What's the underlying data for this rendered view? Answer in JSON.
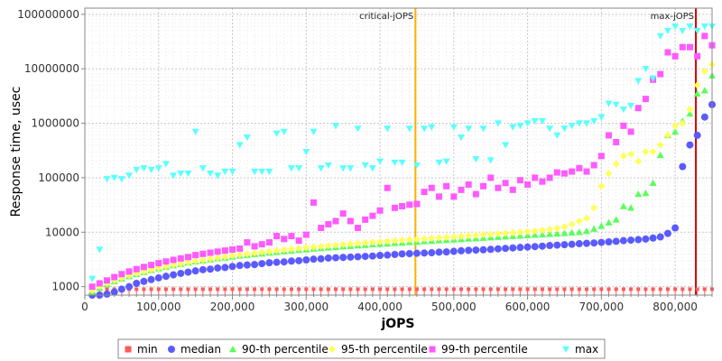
{
  "chart_data": {
    "type": "scatter",
    "xlabel": "jOPS",
    "ylabel": "Response time, usec",
    "xlim": [
      0,
      850000
    ],
    "ylim": [
      700,
      130000000
    ],
    "yscale": "log",
    "x_ticks": [
      0,
      100000,
      200000,
      300000,
      400000,
      500000,
      600000,
      700000,
      800000
    ],
    "x_tick_labels": [
      "0",
      "100,000",
      "200,000",
      "300,000",
      "400,000",
      "500,000",
      "600,000",
      "700,000",
      "800,000"
    ],
    "y_ticks": [
      1000,
      10000,
      100000,
      1000000,
      10000000,
      100000000
    ],
    "y_tick_labels": [
      "1000",
      "10000",
      "100000",
      "1000000",
      "10000000",
      "100000000"
    ],
    "grid": true,
    "legend_position": "bottom",
    "vertical_lines": [
      {
        "label": "critical-jOPS",
        "x": 448000,
        "color": "#ffb000"
      },
      {
        "label": "max-jOPS",
        "x": 828000,
        "color": "#dd0000"
      }
    ],
    "series": [
      {
        "name": "min",
        "color": "#ff5a5a",
        "marker": "square",
        "x": [
          10000,
          20000,
          30000,
          40000,
          50000,
          60000,
          70000,
          80000,
          90000,
          100000,
          110000,
          120000,
          130000,
          140000,
          150000,
          160000,
          170000,
          180000,
          190000,
          200000,
          210000,
          220000,
          230000,
          240000,
          250000,
          260000,
          270000,
          280000,
          290000,
          300000,
          310000,
          320000,
          330000,
          340000,
          350000,
          360000,
          370000,
          380000,
          390000,
          400000,
          410000,
          420000,
          430000,
          440000,
          450000,
          460000,
          470000,
          480000,
          490000,
          500000,
          510000,
          520000,
          530000,
          540000,
          550000,
          560000,
          570000,
          580000,
          590000,
          600000,
          610000,
          620000,
          630000,
          640000,
          650000,
          660000,
          670000,
          680000,
          690000,
          700000,
          710000,
          720000,
          730000,
          740000,
          750000,
          760000,
          770000,
          780000,
          790000,
          800000,
          810000,
          820000,
          830000,
          840000,
          850000
        ],
        "y": [
          900,
          900,
          900,
          900,
          900,
          900,
          900,
          900,
          900,
          900,
          900,
          900,
          900,
          900,
          900,
          900,
          900,
          900,
          900,
          900,
          900,
          900,
          900,
          900,
          900,
          900,
          900,
          900,
          900,
          900,
          900,
          900,
          900,
          900,
          900,
          900,
          900,
          900,
          900,
          900,
          900,
          900,
          900,
          900,
          900,
          900,
          900,
          900,
          900,
          900,
          900,
          900,
          900,
          900,
          900,
          900,
          900,
          900,
          900,
          900,
          900,
          900,
          900,
          900,
          900,
          900,
          900,
          900,
          900,
          900,
          900,
          900,
          900,
          900,
          900,
          900,
          900,
          900,
          900,
          900,
          900,
          900,
          900,
          900,
          900
        ]
      },
      {
        "name": "median",
        "color": "#5a5aff",
        "marker": "circle",
        "x": [
          10000,
          20000,
          30000,
          40000,
          50000,
          60000,
          70000,
          80000,
          90000,
          100000,
          110000,
          120000,
          130000,
          140000,
          150000,
          160000,
          170000,
          180000,
          190000,
          200000,
          210000,
          220000,
          230000,
          240000,
          250000,
          260000,
          270000,
          280000,
          290000,
          300000,
          310000,
          320000,
          330000,
          340000,
          350000,
          360000,
          370000,
          380000,
          390000,
          400000,
          410000,
          420000,
          430000,
          440000,
          450000,
          460000,
          470000,
          480000,
          490000,
          500000,
          510000,
          520000,
          530000,
          540000,
          550000,
          560000,
          570000,
          580000,
          590000,
          600000,
          610000,
          620000,
          630000,
          640000,
          650000,
          660000,
          670000,
          680000,
          690000,
          700000,
          710000,
          720000,
          730000,
          740000,
          750000,
          760000,
          770000,
          780000,
          790000,
          800000,
          810000,
          820000,
          830000,
          840000,
          850000
        ],
        "y": [
          650,
          700,
          730,
          800,
          900,
          1000,
          1150,
          1250,
          1350,
          1450,
          1550,
          1650,
          1750,
          1850,
          1950,
          2050,
          2100,
          2200,
          2250,
          2350,
          2450,
          2500,
          2550,
          2650,
          2750,
          2800,
          2850,
          2950,
          3000,
          3100,
          3200,
          3250,
          3350,
          3400,
          3450,
          3500,
          3550,
          3600,
          3650,
          3750,
          3800,
          3900,
          4000,
          4050,
          4100,
          4150,
          4200,
          4300,
          4350,
          4450,
          4550,
          4650,
          4700,
          4750,
          4850,
          4950,
          5050,
          5150,
          5250,
          5350,
          5450,
          5550,
          5700,
          5800,
          5900,
          6000,
          6150,
          6250,
          6350,
          6500,
          6650,
          6800,
          7000,
          7150,
          7300,
          7500,
          7800,
          8200,
          9500,
          12000,
          160000,
          400000,
          600000,
          1300000,
          2200000
        ]
      },
      {
        "name": "90-th percentile",
        "color": "#5aff5a",
        "marker": "triangle-up",
        "x": [
          10000,
          20000,
          30000,
          40000,
          50000,
          60000,
          70000,
          80000,
          90000,
          100000,
          110000,
          120000,
          130000,
          140000,
          150000,
          160000,
          170000,
          180000,
          190000,
          200000,
          210000,
          220000,
          230000,
          240000,
          250000,
          260000,
          270000,
          280000,
          290000,
          300000,
          310000,
          320000,
          330000,
          340000,
          350000,
          360000,
          370000,
          380000,
          390000,
          400000,
          410000,
          420000,
          430000,
          440000,
          450000,
          460000,
          470000,
          480000,
          490000,
          500000,
          510000,
          520000,
          530000,
          540000,
          550000,
          560000,
          570000,
          580000,
          590000,
          600000,
          610000,
          620000,
          630000,
          640000,
          650000,
          660000,
          670000,
          680000,
          690000,
          700000,
          710000,
          720000,
          730000,
          740000,
          750000,
          760000,
          770000,
          780000,
          790000,
          800000,
          810000,
          820000,
          830000,
          840000,
          850000
        ],
        "y": [
          800,
          950,
          1100,
          1250,
          1400,
          1550,
          1700,
          1850,
          2000,
          2150,
          2300,
          2450,
          2600,
          2750,
          2900,
          3000,
          3150,
          3300,
          3400,
          3550,
          3700,
          3800,
          3950,
          4050,
          4200,
          4300,
          4450,
          4550,
          4700,
          4800,
          4950,
          5050,
          5200,
          5300,
          5450,
          5550,
          5700,
          5800,
          5950,
          6050,
          6150,
          6300,
          6400,
          6550,
          6650,
          6800,
          6900,
          7050,
          7150,
          7300,
          7450,
          7600,
          7700,
          7850,
          8000,
          8150,
          8300,
          8450,
          8600,
          8750,
          8900,
          9050,
          9250,
          9400,
          9600,
          9800,
          10000,
          10500,
          11500,
          13000,
          15000,
          17000,
          30000,
          28000,
          50000,
          52000,
          80000,
          260000,
          600000,
          700000,
          1100000,
          1500000,
          3500000,
          4000000,
          7500000
        ]
      },
      {
        "name": "95-th percentile",
        "color": "#ffff5a",
        "marker": "diamond",
        "x": [
          10000,
          20000,
          30000,
          40000,
          50000,
          60000,
          70000,
          80000,
          90000,
          100000,
          110000,
          120000,
          130000,
          140000,
          150000,
          160000,
          170000,
          180000,
          190000,
          200000,
          210000,
          220000,
          230000,
          240000,
          250000,
          260000,
          270000,
          280000,
          290000,
          300000,
          310000,
          320000,
          330000,
          340000,
          350000,
          360000,
          370000,
          380000,
          390000,
          400000,
          410000,
          420000,
          430000,
          440000,
          450000,
          460000,
          470000,
          480000,
          490000,
          500000,
          510000,
          520000,
          530000,
          540000,
          550000,
          560000,
          570000,
          580000,
          590000,
          600000,
          610000,
          620000,
          630000,
          640000,
          650000,
          660000,
          670000,
          680000,
          690000,
          700000,
          710000,
          720000,
          730000,
          740000,
          750000,
          760000,
          770000,
          780000,
          790000,
          800000,
          810000,
          820000,
          830000,
          840000,
          850000
        ],
        "y": [
          850,
          1000,
          1150,
          1300,
          1450,
          1600,
          1750,
          1900,
          2050,
          2200,
          2350,
          2500,
          2650,
          2800,
          2950,
          3100,
          3250,
          3400,
          3550,
          3700,
          3850,
          4000,
          4150,
          4300,
          4450,
          4600,
          4750,
          4900,
          5050,
          5200,
          5350,
          5500,
          5650,
          5800,
          5950,
          6100,
          6250,
          6400,
          6550,
          6700,
          6850,
          7000,
          7150,
          7300,
          7450,
          7600,
          7750,
          7900,
          8050,
          8200,
          8400,
          8600,
          8800,
          9000,
          9200,
          9400,
          9600,
          9800,
          10000,
          10300,
          10600,
          10900,
          11300,
          11700,
          12500,
          14000,
          16000,
          18000,
          28000,
          70000,
          120000,
          180000,
          250000,
          270000,
          200000,
          300000,
          300000,
          400000,
          600000,
          900000,
          1000000,
          1800000,
          5000000,
          9000000,
          12000000
        ]
      },
      {
        "name": "99-th percentile",
        "color": "#ff5aff",
        "marker": "square",
        "x": [
          10000,
          20000,
          30000,
          40000,
          50000,
          60000,
          70000,
          80000,
          90000,
          100000,
          110000,
          120000,
          130000,
          140000,
          150000,
          160000,
          170000,
          180000,
          190000,
          200000,
          210000,
          220000,
          230000,
          240000,
          250000,
          260000,
          270000,
          280000,
          290000,
          300000,
          310000,
          320000,
          330000,
          340000,
          350000,
          360000,
          370000,
          380000,
          390000,
          400000,
          410000,
          420000,
          430000,
          440000,
          450000,
          460000,
          470000,
          480000,
          490000,
          500000,
          510000,
          520000,
          530000,
          540000,
          550000,
          560000,
          570000,
          580000,
          590000,
          600000,
          610000,
          620000,
          630000,
          640000,
          650000,
          660000,
          670000,
          680000,
          690000,
          700000,
          710000,
          720000,
          730000,
          740000,
          750000,
          760000,
          770000,
          780000,
          790000,
          800000,
          810000,
          820000,
          830000,
          840000,
          850000
        ],
        "y": [
          1000,
          1150,
          1300,
          1500,
          1700,
          1900,
          2100,
          2300,
          2500,
          2700,
          2900,
          3100,
          3300,
          3500,
          3800,
          4000,
          4200,
          4400,
          4600,
          4800,
          5000,
          6500,
          5500,
          6000,
          6500,
          8500,
          7500,
          8500,
          7000,
          9000,
          35000,
          12000,
          14000,
          16000,
          22000,
          16000,
          12000,
          17000,
          20000,
          25000,
          65000,
          28000,
          30000,
          32000,
          33000,
          55000,
          65000,
          45000,
          70000,
          45000,
          60000,
          75000,
          50000,
          70000,
          100000,
          65000,
          80000,
          60000,
          90000,
          75000,
          100000,
          85000,
          100000,
          125000,
          120000,
          130000,
          150000,
          130000,
          170000,
          250000,
          600000,
          450000,
          900000,
          700000,
          1900000,
          2800000,
          6300000,
          8000000,
          20000000,
          17000000,
          25000000,
          25000000,
          17000000,
          40000000,
          27000000
        ]
      },
      {
        "name": "max",
        "color": "#5affff",
        "marker": "triangle-down",
        "x": [
          10000,
          20000,
          30000,
          40000,
          50000,
          60000,
          70000,
          80000,
          90000,
          100000,
          110000,
          120000,
          130000,
          140000,
          150000,
          160000,
          170000,
          180000,
          190000,
          200000,
          210000,
          220000,
          230000,
          240000,
          250000,
          260000,
          270000,
          280000,
          290000,
          300000,
          310000,
          320000,
          330000,
          340000,
          350000,
          360000,
          370000,
          380000,
          390000,
          400000,
          410000,
          420000,
          430000,
          440000,
          450000,
          460000,
          470000,
          480000,
          490000,
          500000,
          510000,
          520000,
          530000,
          540000,
          550000,
          560000,
          570000,
          580000,
          590000,
          600000,
          610000,
          620000,
          630000,
          640000,
          650000,
          660000,
          670000,
          680000,
          690000,
          700000,
          710000,
          720000,
          730000,
          740000,
          750000,
          760000,
          770000,
          780000,
          790000,
          800000,
          810000,
          820000,
          830000,
          840000,
          850000
        ],
        "y": [
          1400,
          4800,
          95000,
          100000,
          95000,
          110000,
          140000,
          150000,
          140000,
          150000,
          180000,
          110000,
          120000,
          120000,
          700000,
          150000,
          120000,
          110000,
          130000,
          130000,
          400000,
          550000,
          130000,
          130000,
          130000,
          650000,
          700000,
          150000,
          150000,
          300000,
          700000,
          150000,
          170000,
          900000,
          150000,
          150000,
          800000,
          170000,
          150000,
          200000,
          800000,
          190000,
          190000,
          800000,
          170000,
          800000,
          850000,
          190000,
          200000,
          850000,
          550000,
          800000,
          220000,
          800000,
          210000,
          1000000,
          400000,
          850000,
          900000,
          1000000,
          1100000,
          1100000,
          800000,
          600000,
          800000,
          900000,
          1000000,
          1000000,
          1100000,
          1300000,
          2300000,
          2200000,
          1800000,
          2100000,
          6000000,
          10000000,
          6700000,
          40000000,
          50000000,
          60000000,
          50000000,
          60000000,
          50000000,
          60000000,
          60000000
        ]
      }
    ]
  }
}
